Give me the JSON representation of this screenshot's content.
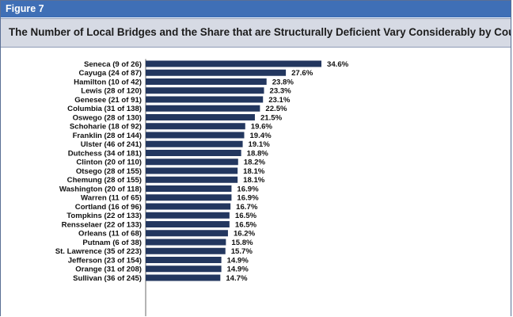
{
  "figure": {
    "label": "Figure 7"
  },
  "chart_data": {
    "type": "bar",
    "orientation": "horizontal",
    "title": "The Number of Local Bridges and the Share that are Structurally Deficient Vary Considerably by County",
    "value_suffix": "%",
    "categories": [
      "Seneca (9 of 26)",
      "Cayuga (24 of 87)",
      "Hamilton (10 of 42)",
      "Lewis (28 of 120)",
      "Genesee (21 of 91)",
      "Columbia (31 of 138)",
      "Oswego (28 of 130)",
      "Schoharie (18 of 92)",
      "Franklin (28 of 144)",
      "Ulster (46 of 241)",
      "Dutchess (34 of 181)",
      "Clinton (20 of 110)",
      "Otsego (28 of 155)",
      "Chemung (28 of 155)",
      "Washington (20 of 118)",
      "Warren (11 of 65)",
      "Cortland (16 of 96)",
      "Tompkins (22 of 133)",
      "Rensselaer (22 of 133)",
      "Orleans (11 of 68)",
      "Putnam (6 of 38)",
      "St. Lawrence (35 of 223)",
      "Jefferson (23 of 154)",
      "Orange (31 of 208)",
      "Sullivan (36 of 245)"
    ],
    "values": [
      34.6,
      27.6,
      23.8,
      23.3,
      23.1,
      22.5,
      21.5,
      19.6,
      19.4,
      19.1,
      18.8,
      18.2,
      18.1,
      18.1,
      16.9,
      16.9,
      16.7,
      16.5,
      16.5,
      16.2,
      15.8,
      15.7,
      14.9,
      14.9,
      14.7
    ],
    "value_labels": [
      "34.6%",
      "27.6%",
      "23.8%",
      "23.3%",
      "23.1%",
      "22.5%",
      "21.5%",
      "19.6%",
      "19.4%",
      "19.1%",
      "18.8%",
      "18.2%",
      "18.1%",
      "18.1%",
      "16.9%",
      "16.9%",
      "16.7%",
      "16.5%",
      "16.5%",
      "16.2%",
      "15.8%",
      "15.7%",
      "14.9%",
      "14.9%",
      "14.7%"
    ],
    "xlim": [
      0,
      34.6
    ],
    "grid": false,
    "legend": false,
    "bar_color": "#23375f"
  }
}
